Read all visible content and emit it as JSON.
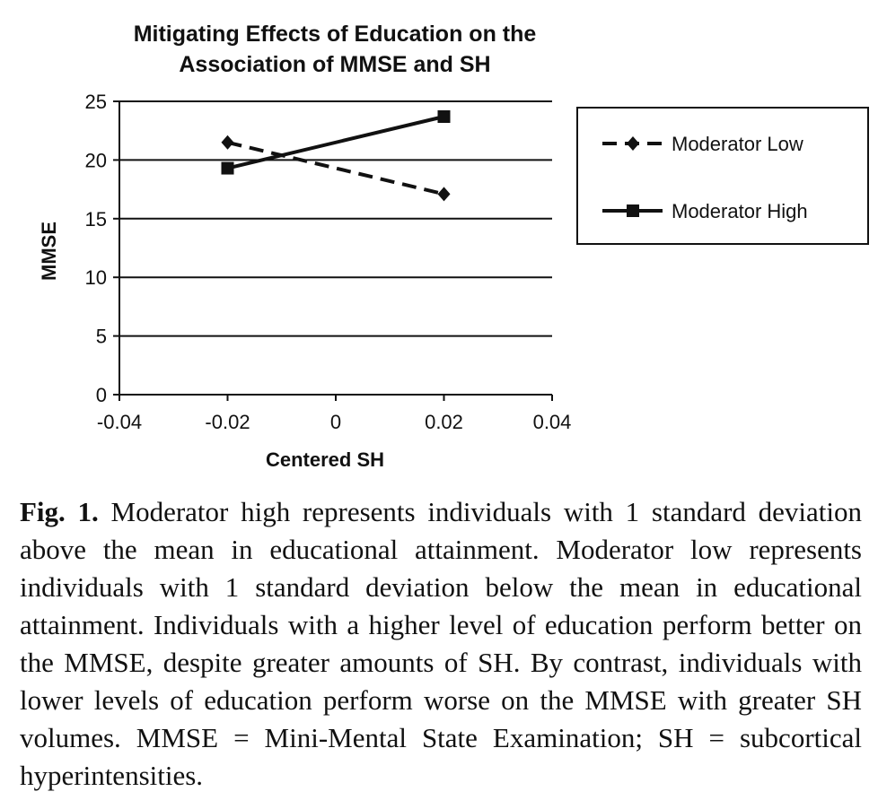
{
  "chart_data": {
    "type": "line",
    "title": "Mitigating Effects of Education on the Association of MMSE and SH",
    "title_lines": [
      "Mitigating Effects of Education on the",
      "Association of MMSE and SH"
    ],
    "xlabel": "Centered SH",
    "ylabel": "MMSE",
    "xlim": [
      -0.04,
      0.04
    ],
    "ylim": [
      0,
      25
    ],
    "x_ticks": [
      -0.04,
      -0.02,
      0,
      0.02,
      0.04
    ],
    "x_tick_labels": [
      "-0.04",
      "-0.02",
      "0",
      "0.02",
      "0.04"
    ],
    "y_ticks": [
      0,
      5,
      10,
      15,
      20,
      25
    ],
    "y_tick_labels": [
      "0",
      "5",
      "10",
      "15",
      "20",
      "25"
    ],
    "grid": "horizontal",
    "legend_position": "right",
    "series": [
      {
        "name": "Moderator Low",
        "x": [
          -0.02,
          0.02
        ],
        "y": [
          21.5,
          17.1
        ],
        "line_style": "dashed",
        "marker": "diamond",
        "color": "#111111"
      },
      {
        "name": "Moderator High",
        "x": [
          -0.02,
          0.02
        ],
        "y": [
          19.3,
          23.7
        ],
        "line_style": "solid",
        "marker": "square",
        "color": "#111111"
      }
    ]
  },
  "caption": {
    "label": "Fig. 1.",
    "text": "Moderator high represents individuals with 1 standard deviation above the mean in educational attainment. Moderator low represents individuals with 1 standard deviation below the mean in educational attainment. Individuals with a higher level of education perform better on the MMSE, despite greater amounts of SH. By contrast, individuals with lower levels of education perform worse on the MMSE with greater SH volumes. MMSE = Mini-Mental State Examination; SH = subcortical hyperintensities."
  }
}
